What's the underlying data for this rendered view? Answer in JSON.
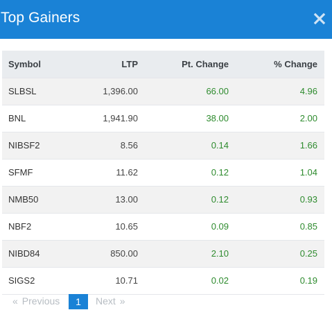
{
  "modal": {
    "title": "Top Gainers",
    "close_icon": "close-x-icon",
    "accent_color": "#1a82d6",
    "gain_color": "#2e8b2e"
  },
  "table": {
    "columns": [
      "Symbol",
      "LTP",
      "Pt. Change",
      "% Change"
    ],
    "rows": [
      {
        "symbol": "SLBSL",
        "ltp": "1,396.00",
        "pt_change": "66.00",
        "pct_change": "4.96"
      },
      {
        "symbol": "BNL",
        "ltp": "1,941.90",
        "pt_change": "38.00",
        "pct_change": "2.00"
      },
      {
        "symbol": "NIBSF2",
        "ltp": "8.56",
        "pt_change": "0.14",
        "pct_change": "1.66"
      },
      {
        "symbol": "SFMF",
        "ltp": "11.62",
        "pt_change": "0.12",
        "pct_change": "1.04"
      },
      {
        "symbol": "NMB50",
        "ltp": "13.00",
        "pt_change": "0.12",
        "pct_change": "0.93"
      },
      {
        "symbol": "NBF2",
        "ltp": "10.65",
        "pt_change": "0.09",
        "pct_change": "0.85"
      },
      {
        "symbol": "NIBD84",
        "ltp": "850.00",
        "pt_change": "2.10",
        "pct_change": "0.25"
      },
      {
        "symbol": "SIGS2",
        "ltp": "10.71",
        "pt_change": "0.02",
        "pct_change": "0.19"
      }
    ]
  },
  "pagination": {
    "prev_arrow": "«",
    "prev_label": "Previous",
    "current_page": "1",
    "next_label": "Next",
    "next_arrow": "»"
  }
}
